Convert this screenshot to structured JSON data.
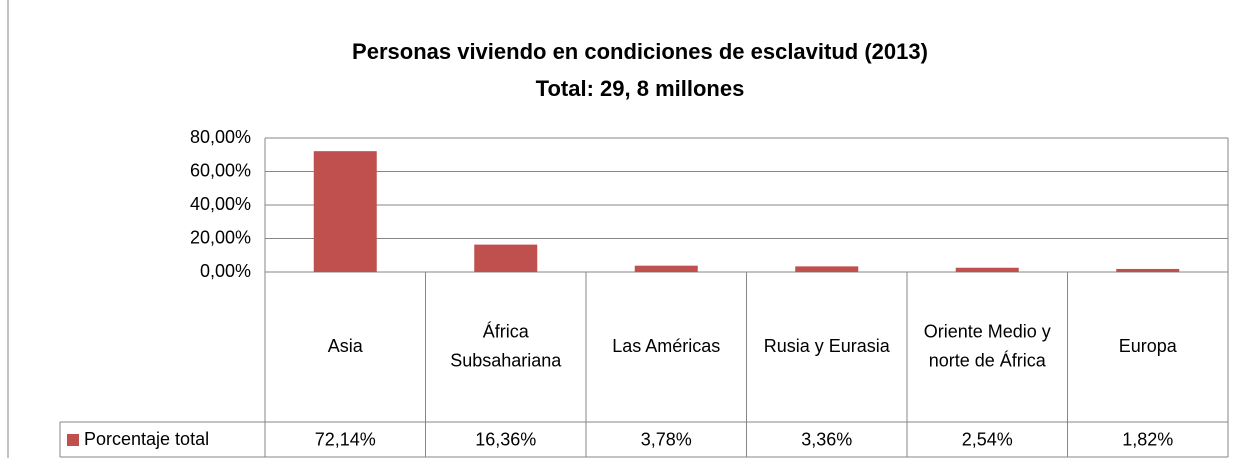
{
  "chart_data": {
    "type": "bar",
    "title": "Personas viviendo en condiciones de esclavitud (2013)",
    "subtitle": "Total: 29, 8 millones",
    "categories": [
      "Asia",
      "África Subsahariana",
      "Las Américas",
      "Rusia y Eurasia",
      "Oriente Medio y norte de África",
      "Europa"
    ],
    "series": [
      {
        "name": "Porcentaje total",
        "color": "#c0504d",
        "values": [
          72.14,
          16.36,
          3.78,
          3.36,
          2.54,
          1.82
        ],
        "value_labels": [
          "72,14%",
          "16,36%",
          "3,78%",
          "3,36%",
          "2,54%",
          "1,82%"
        ]
      }
    ],
    "ylim": [
      0,
      80
    ],
    "yticks": [
      {
        "value": 0,
        "label": "0,00%"
      },
      {
        "value": 20,
        "label": "20,00%"
      },
      {
        "value": 40,
        "label": "40,00%"
      },
      {
        "value": 60,
        "label": "60,00%"
      },
      {
        "value": 80,
        "label": "80,00%"
      }
    ],
    "grid": true
  }
}
